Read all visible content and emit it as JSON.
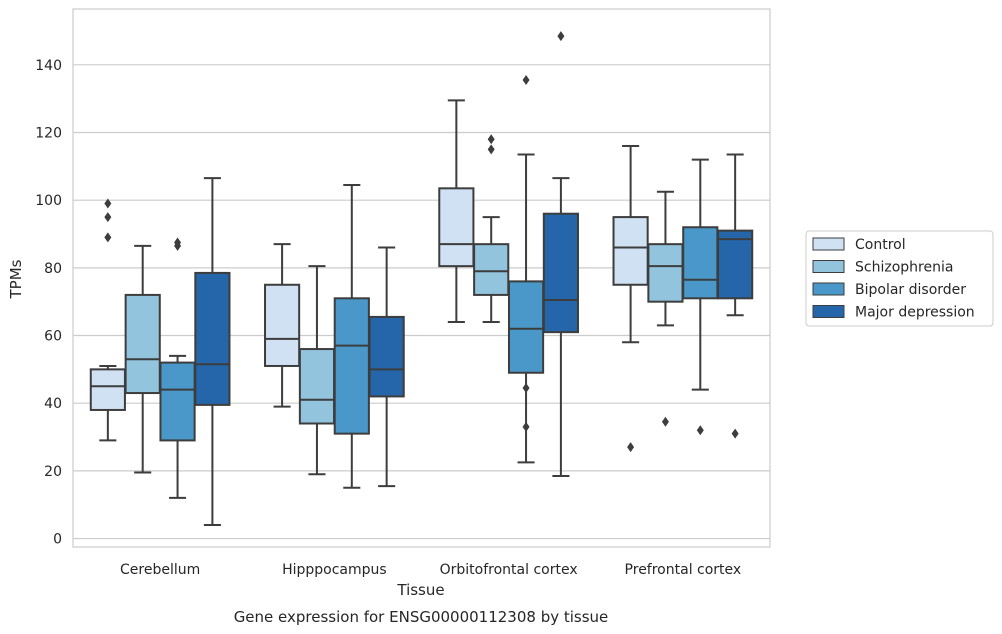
{
  "chart_data": {
    "type": "box",
    "title": "",
    "caption": "Gene expression for ENSG00000112308 by tissue",
    "xlabel": "Tissue",
    "ylabel": "TPMs",
    "ylim": [
      -2.5,
      156.5
    ],
    "yticks": [
      0,
      20,
      40,
      60,
      80,
      100,
      120,
      140
    ],
    "grid": "horizontal",
    "legend_position": "right",
    "categories": [
      "Cerebellum",
      "Hipppocampus",
      "Orbitofrontal cortex",
      "Prefrontal cortex"
    ],
    "series": [
      {
        "name": "Control",
        "color": "#cfe1f2",
        "boxes": [
          {
            "whisker_low": 29,
            "q1": 38,
            "median": 45,
            "q3": 50,
            "whisker_high": 51,
            "outliers": [
              89,
              95,
              99
            ]
          },
          {
            "whisker_low": 39,
            "q1": 51,
            "median": 59,
            "q3": 75,
            "whisker_high": 87,
            "outliers": []
          },
          {
            "whisker_low": 64,
            "q1": 80.5,
            "median": 87,
            "q3": 103.5,
            "whisker_high": 129.5,
            "outliers": []
          },
          {
            "whisker_low": 58,
            "q1": 75,
            "median": 86,
            "q3": 95,
            "whisker_high": 116,
            "outliers": [
              27
            ]
          }
        ]
      },
      {
        "name": "Schizophrenia",
        "color": "#93c4de",
        "boxes": [
          {
            "whisker_low": 19.5,
            "q1": 43,
            "median": 53,
            "q3": 72,
            "whisker_high": 86.5,
            "outliers": []
          },
          {
            "whisker_low": 19,
            "q1": 34,
            "median": 41,
            "q3": 56,
            "whisker_high": 80.5,
            "outliers": []
          },
          {
            "whisker_low": 64,
            "q1": 72,
            "median": 79,
            "q3": 87,
            "whisker_high": 95,
            "outliers": [
              115,
              118
            ]
          },
          {
            "whisker_low": 63,
            "q1": 70,
            "median": 80.5,
            "q3": 87,
            "whisker_high": 102.5,
            "outliers": [
              34.5
            ]
          }
        ]
      },
      {
        "name": "Bipolar disorder",
        "color": "#4a98c9",
        "boxes": [
          {
            "whisker_low": 12,
            "q1": 29,
            "median": 44,
            "q3": 52,
            "whisker_high": 54,
            "outliers": [
              86.5,
              87.5
            ]
          },
          {
            "whisker_low": 15,
            "q1": 31,
            "median": 57,
            "q3": 71,
            "whisker_high": 104.5,
            "outliers": []
          },
          {
            "whisker_low": 22.5,
            "q1": 49,
            "median": 62,
            "q3": 76,
            "whisker_high": 113.5,
            "outliers": [
              33,
              44.5,
              135.5
            ]
          },
          {
            "whisker_low": 44,
            "q1": 71,
            "median": 76.5,
            "q3": 92,
            "whisker_high": 112,
            "outliers": [
              32
            ]
          }
        ]
      },
      {
        "name": "Major depression",
        "color": "#2466a9",
        "boxes": [
          {
            "whisker_low": 4,
            "q1": 39.5,
            "median": 51.5,
            "q3": 78.5,
            "whisker_high": 106.5,
            "outliers": []
          },
          {
            "whisker_low": 15.5,
            "q1": 42,
            "median": 50,
            "q3": 65.5,
            "whisker_high": 86,
            "outliers": []
          },
          {
            "whisker_low": 18.5,
            "q1": 61,
            "median": 70.5,
            "q3": 96,
            "whisker_high": 106.5,
            "outliers": [
              148.5
            ]
          },
          {
            "whisker_low": 66,
            "q1": 71,
            "median": 88.5,
            "q3": 91,
            "whisker_high": 113.5,
            "outliers": [
              31
            ]
          }
        ]
      }
    ]
  }
}
